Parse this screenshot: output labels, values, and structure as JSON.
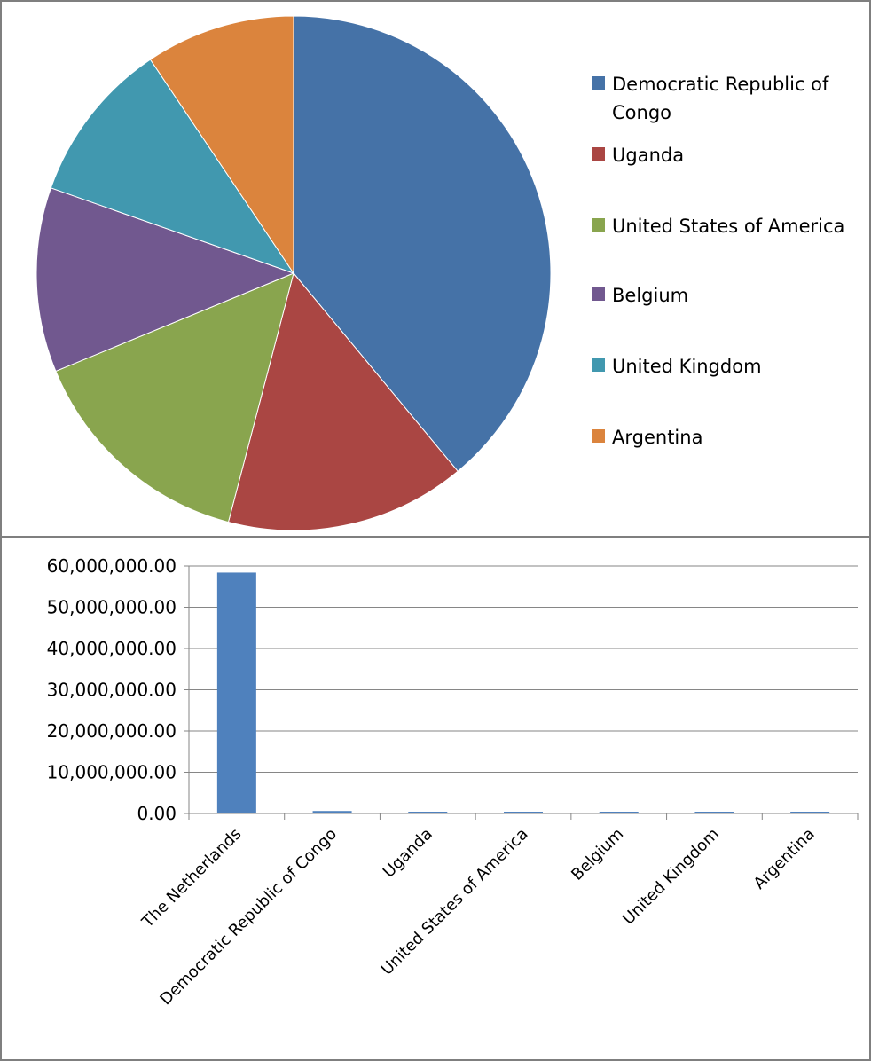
{
  "chart_data": [
    {
      "type": "pie",
      "title": "",
      "categories": [
        "Democratic Republic of Congo",
        "Uganda",
        "United States of America",
        "Belgium",
        "United Kingdom",
        "Argentina"
      ],
      "values": [
        0.3898,
        0.151,
        0.147,
        0.116,
        0.1022,
        0.094
      ],
      "legend": [
        "Democratic Republic of Congo",
        "Uganda",
        "United States of America",
        "Belgium",
        "United Kingdom",
        "Argentina"
      ],
      "legend_position": "right",
      "colors": [
        "#4572A7",
        "#AA4643",
        "#89A54E",
        "#71588F",
        "#4198AF",
        "#DB843D"
      ]
    },
    {
      "type": "bar",
      "title": "",
      "xlabel": "",
      "ylabel": "",
      "categories": [
        "The Netherlands",
        "Democratic Republic of Congo",
        "Uganda",
        "United States of America",
        "Belgium",
        "United Kingdom",
        "Argentina"
      ],
      "values": [
        58400000,
        600000,
        300000,
        300000,
        250000,
        250000,
        250000
      ],
      "ylim": [
        0,
        60000000
      ],
      "y_ticks": [
        "0.00",
        "10,000,000.00",
        "20,000,000.00",
        "30,000,000.00",
        "40,000,000.00",
        "50,000,000.00",
        "60,000,000.00"
      ],
      "grid": true,
      "bar_color": "#4F81BD"
    }
  ]
}
